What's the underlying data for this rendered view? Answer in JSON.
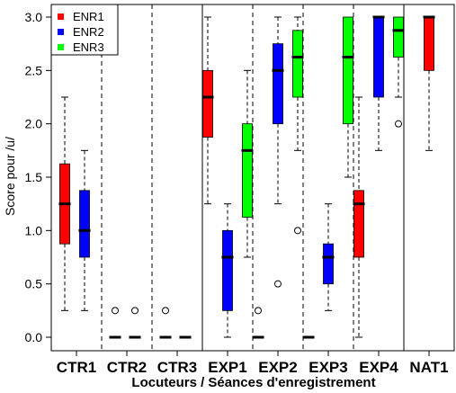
{
  "chart_data": {
    "type": "boxplot",
    "xlabel": "Locuteurs / Séances d'enregistrement",
    "ylabel": "Score pour /u/",
    "ylim": [
      0,
      3
    ],
    "yticks": [
      "0.0",
      "0.5",
      "1.0",
      "1.5",
      "2.0",
      "2.5",
      "3.0"
    ],
    "categories": [
      "CTR1",
      "CTR2",
      "CTR3",
      "EXP1",
      "EXP2",
      "EXP3",
      "EXP4",
      "NAT1"
    ],
    "series": [
      {
        "name": "ENR1",
        "color": "#ff0000"
      },
      {
        "name": "ENR2",
        "color": "#0000ff"
      },
      {
        "name": "ENR3",
        "color": "#00ff00"
      }
    ],
    "legend": {
      "position": "top-left",
      "items": [
        "ENR1",
        "ENR2",
        "ENR3"
      ]
    },
    "boxes": [
      {
        "category": "CTR1",
        "series": "ENR1",
        "min": 0.25,
        "q1": 0.875,
        "median": 1.25,
        "q3": 1.625,
        "max": 2.25,
        "outliers": []
      },
      {
        "category": "CTR1",
        "series": "ENR2",
        "min": 0.25,
        "q1": 0.75,
        "median": 1.0,
        "q3": 1.375,
        "max": 1.75,
        "outliers": []
      },
      {
        "category": "CTR2",
        "series": "ENR1",
        "min": 0,
        "q1": 0,
        "median": 0,
        "q3": 0,
        "max": 0,
        "outliers": [
          0.25
        ]
      },
      {
        "category": "CTR2",
        "series": "ENR2",
        "min": 0,
        "q1": 0,
        "median": 0,
        "q3": 0,
        "max": 0,
        "outliers": [
          0.25
        ]
      },
      {
        "category": "CTR3",
        "series": "ENR1",
        "min": 0,
        "q1": 0,
        "median": 0,
        "q3": 0,
        "max": 0,
        "outliers": [
          0.25
        ]
      },
      {
        "category": "CTR3",
        "series": "ENR2",
        "min": 0,
        "q1": 0,
        "median": 0,
        "q3": 0,
        "max": 0,
        "outliers": []
      },
      {
        "category": "EXP1",
        "series": "ENR1",
        "min": 1.25,
        "q1": 1.875,
        "median": 2.25,
        "q3": 2.5,
        "max": 3.0,
        "outliers": []
      },
      {
        "category": "EXP1",
        "series": "ENR2",
        "min": 0,
        "q1": 0.25,
        "median": 0.75,
        "q3": 1.0,
        "max": 1.25,
        "outliers": []
      },
      {
        "category": "EXP1",
        "series": "ENR3",
        "min": 0.75,
        "q1": 1.125,
        "median": 1.75,
        "q3": 2.0,
        "max": 2.5,
        "outliers": []
      },
      {
        "category": "EXP2",
        "series": "ENR1",
        "min": 0,
        "q1": 0,
        "median": 0,
        "q3": 0,
        "max": 0,
        "outliers": [
          0.25
        ]
      },
      {
        "category": "EXP2",
        "series": "ENR2",
        "min": 1.25,
        "q1": 2.0,
        "median": 2.5,
        "q3": 2.75,
        "max": 3.0,
        "outliers": [
          0.5
        ]
      },
      {
        "category": "EXP2",
        "series": "ENR3",
        "min": 1.75,
        "q1": 2.25,
        "median": 2.625,
        "q3": 2.875,
        "max": 3.0,
        "outliers": [
          1.0
        ]
      },
      {
        "category": "EXP3",
        "series": "ENR1",
        "min": 0,
        "q1": 0,
        "median": 0,
        "q3": 0,
        "max": 0,
        "outliers": []
      },
      {
        "category": "EXP3",
        "series": "ENR2",
        "min": 0.25,
        "q1": 0.5,
        "median": 0.75,
        "q3": 0.875,
        "max": 1.25,
        "outliers": []
      },
      {
        "category": "EXP3",
        "series": "ENR3",
        "min": 1.5,
        "q1": 2.0,
        "median": 2.625,
        "q3": 3.0,
        "max": 3.0,
        "outliers": []
      },
      {
        "category": "EXP4",
        "series": "ENR1",
        "min": 0,
        "q1": 0.75,
        "median": 1.25,
        "q3": 1.375,
        "max": 2.25,
        "outliers": []
      },
      {
        "category": "EXP4",
        "series": "ENR2",
        "min": 1.75,
        "q1": 2.25,
        "median": 3.0,
        "q3": 3.0,
        "max": 3.0,
        "outliers": []
      },
      {
        "category": "EXP4",
        "series": "ENR3",
        "min": 2.25,
        "q1": 2.625,
        "median": 2.875,
        "q3": 3.0,
        "max": 3.0,
        "outliers": [
          2.0
        ]
      },
      {
        "category": "NAT1",
        "series": "ENR1",
        "min": 1.75,
        "q1": 2.5,
        "median": 3.0,
        "q3": 3.0,
        "max": 3.0,
        "outliers": []
      }
    ]
  }
}
